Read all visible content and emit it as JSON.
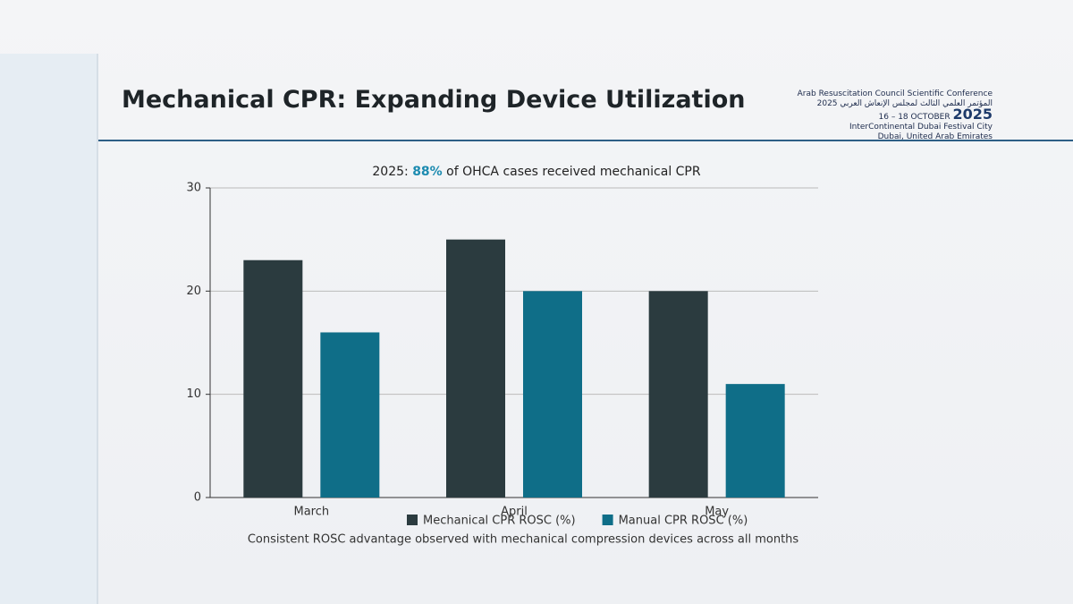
{
  "chart_data": {
    "type": "bar",
    "title": "Mechanical CPR: Expanding Device Utilization",
    "subtitle": {
      "lead": "2025:",
      "highlight": "88%",
      "rest": "of OHCA cases received mechanical CPR"
    },
    "categories": [
      "March",
      "April",
      "May"
    ],
    "series": [
      {
        "name": "Mechanical CPR ROSC (%)",
        "color": "#2b3b3f",
        "values": [
          23,
          25,
          20
        ]
      },
      {
        "name": "Manual CPR ROSC (%)",
        "color": "#0f6e88",
        "values": [
          16,
          20,
          11
        ]
      }
    ],
    "ylim": [
      0,
      30
    ],
    "yticks": [
      0,
      10,
      20,
      30
    ],
    "grid": true,
    "legend": "bottom",
    "footnote": "Consistent ROSC advantage observed with mechanical compression devices across all months"
  },
  "logo": {
    "name": "Arab Resuscitation Council Scientific Conference",
    "arabic": "المؤتمر العلمي الثالث لمجلس الإنعاش العربي 2025",
    "dates": "16 – 18 OCTOBER",
    "year": "2025",
    "venue": "InterContinental Dubai Festival City",
    "city": "Dubai, United Arab Emirates"
  }
}
